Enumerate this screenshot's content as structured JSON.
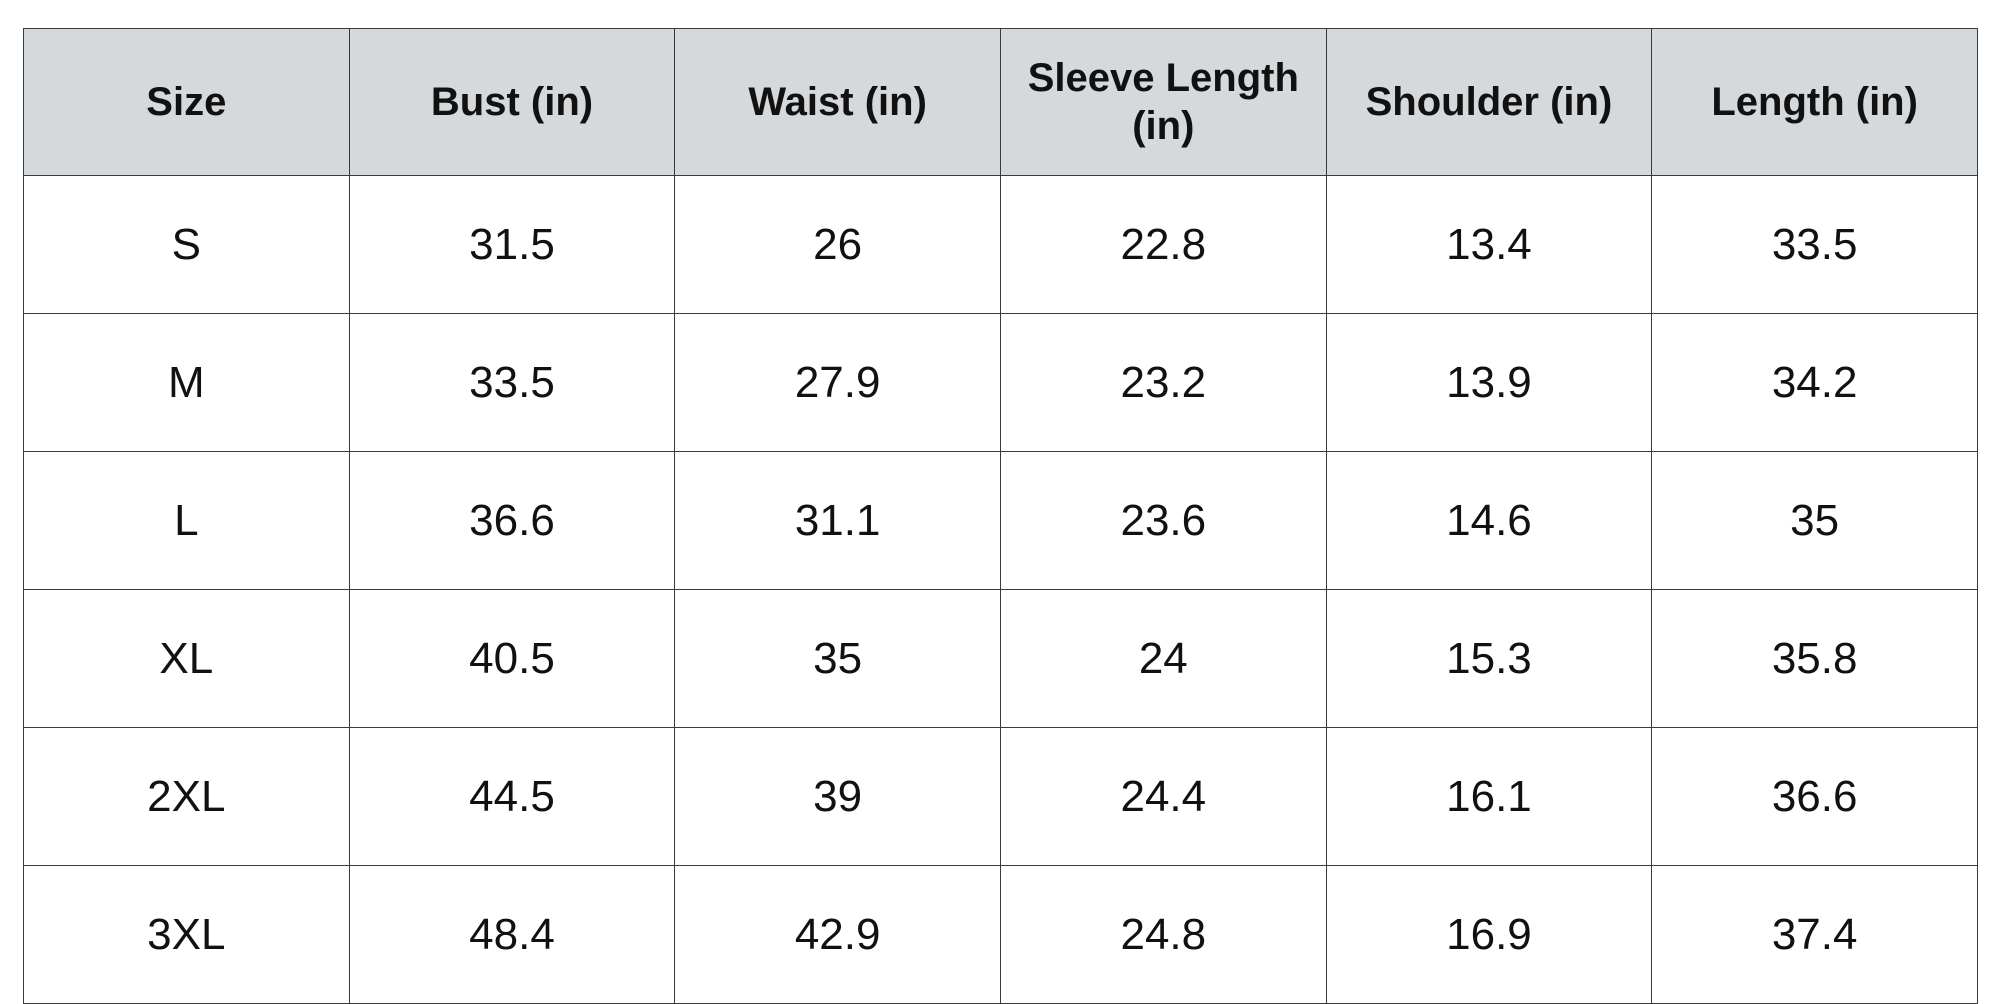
{
  "table": {
    "header": [
      "Size",
      "Bust (in)",
      "Waist (in)",
      "Sleeve Length (in)",
      "Shoulder (in)",
      "Length (in)"
    ],
    "rows": [
      [
        "S",
        31.5,
        26,
        22.8,
        13.4,
        33.5
      ],
      [
        "M",
        33.5,
        27.9,
        23.2,
        13.9,
        34.2
      ],
      [
        "L",
        36.6,
        31.1,
        23.6,
        14.6,
        35
      ],
      [
        "XL",
        40.5,
        35,
        24,
        15.3,
        35.8
      ],
      [
        "2XL",
        44.5,
        39,
        24.4,
        16.1,
        36.6
      ],
      [
        "3XL",
        48.4,
        42.9,
        24.8,
        16.9,
        37.4
      ]
    ]
  }
}
